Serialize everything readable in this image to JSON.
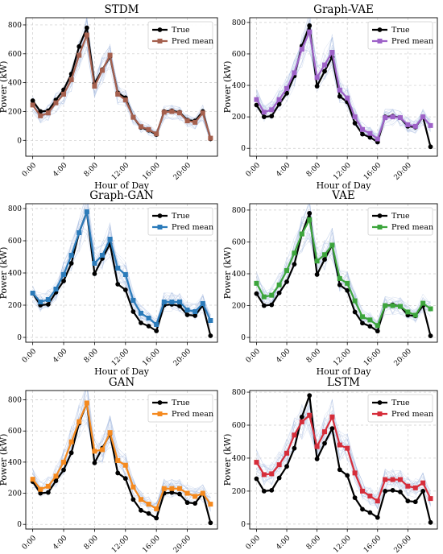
{
  "chart_data": [
    {
      "type": "line",
      "title": "STDM",
      "xlabel": "Hour of Day",
      "ylabel": "Power (kW)",
      "x": [
        0,
        1,
        2,
        3,
        4,
        5,
        6,
        7,
        8,
        9,
        10,
        11,
        12,
        13,
        14,
        15,
        16,
        17,
        18,
        19,
        20,
        21,
        22,
        23
      ],
      "xticks": [
        0,
        4,
        8,
        12,
        16,
        20
      ],
      "xticklabels": [
        "0:00",
        "4:00",
        "8:00",
        "12:00",
        "16:00",
        "20:00"
      ],
      "xlim": [
        -0.9,
        23.9
      ],
      "yticks": [
        0,
        200,
        400,
        600,
        800
      ],
      "ylim": [
        -110,
        850
      ],
      "grid": true,
      "legend": "top-right",
      "series": [
        {
          "name": "True",
          "color": "#000000",
          "marker": "circle",
          "values": [
            275,
            200,
            205,
            280,
            350,
            460,
            650,
            780,
            395,
            490,
            580,
            330,
            295,
            160,
            90,
            70,
            40,
            200,
            205,
            195,
            140,
            135,
            200,
            10
          ]
        },
        {
          "name": "Pred mean",
          "color": "#a5604e",
          "marker": "square",
          "values": [
            245,
            170,
            190,
            260,
            320,
            420,
            590,
            730,
            375,
            485,
            590,
            320,
            280,
            160,
            95,
            75,
            45,
            195,
            200,
            190,
            135,
            125,
            190,
            15
          ]
        }
      ]
    },
    {
      "type": "line",
      "title": "Graph-VAE",
      "xlabel": "Hour of Day",
      "ylabel": "Power (kW)",
      "x": [
        0,
        1,
        2,
        3,
        4,
        5,
        6,
        7,
        8,
        9,
        10,
        11,
        12,
        13,
        14,
        15,
        16,
        17,
        18,
        19,
        20,
        21,
        22,
        23
      ],
      "xticks": [
        0,
        4,
        8,
        12,
        16,
        20
      ],
      "xticklabels": [
        "0:00",
        "4:00",
        "8:00",
        "12:00",
        "16:00",
        "20:00"
      ],
      "xlim": [
        -0.9,
        23.9
      ],
      "yticks": [
        0,
        200,
        400,
        600,
        800
      ],
      "ylim": [
        -50,
        830
      ],
      "grid": true,
      "legend": "top-right",
      "series": [
        {
          "name": "True",
          "color": "#000000",
          "marker": "circle",
          "values": [
            275,
            200,
            205,
            280,
            350,
            460,
            650,
            780,
            395,
            490,
            580,
            330,
            295,
            160,
            90,
            70,
            40,
            200,
            205,
            195,
            140,
            135,
            200,
            10
          ]
        },
        {
          "name": "Pred mean",
          "color": "#9e62c8",
          "marker": "square",
          "values": [
            310,
            230,
            245,
            310,
            380,
            480,
            630,
            740,
            450,
            530,
            610,
            370,
            320,
            200,
            120,
            95,
            60,
            195,
            200,
            195,
            150,
            140,
            200,
            145
          ]
        }
      ]
    },
    {
      "type": "line",
      "title": "Graph-GAN",
      "xlabel": "Hour of Day",
      "ylabel": "Power (kW)",
      "x": [
        0,
        1,
        2,
        3,
        4,
        5,
        6,
        7,
        8,
        9,
        10,
        11,
        12,
        13,
        14,
        15,
        16,
        17,
        18,
        19,
        20,
        21,
        22,
        23
      ],
      "xticks": [
        0,
        4,
        8,
        12,
        16,
        20
      ],
      "xticklabels": [
        "0:00",
        "4:00",
        "8:00",
        "12:00",
        "16:00",
        "20:00"
      ],
      "xlim": [
        -0.9,
        23.9
      ],
      "yticks": [
        0,
        200,
        400,
        600,
        800
      ],
      "ylim": [
        -30,
        830
      ],
      "grid": true,
      "legend": "top-right",
      "series": [
        {
          "name": "True",
          "color": "#000000",
          "marker": "circle",
          "values": [
            275,
            200,
            205,
            280,
            350,
            460,
            650,
            780,
            395,
            490,
            580,
            330,
            295,
            160,
            90,
            70,
            40,
            200,
            205,
            195,
            140,
            135,
            200,
            10
          ]
        },
        {
          "name": "Pred mean",
          "color": "#2b7bba",
          "marker": "square",
          "values": [
            275,
            220,
            235,
            300,
            390,
            510,
            650,
            780,
            460,
            510,
            610,
            430,
            390,
            230,
            150,
            120,
            80,
            220,
            220,
            220,
            170,
            160,
            210,
            105
          ]
        }
      ]
    },
    {
      "type": "line",
      "title": "VAE",
      "xlabel": "Hour of Day",
      "ylabel": "Power (kW)",
      "x": [
        0,
        1,
        2,
        3,
        4,
        5,
        6,
        7,
        8,
        9,
        10,
        11,
        12,
        13,
        14,
        15,
        16,
        17,
        18,
        19,
        20,
        21,
        22,
        23
      ],
      "xticks": [
        0,
        4,
        8,
        12,
        16,
        20
      ],
      "xticklabels": [
        "0:00",
        "4:00",
        "8:00",
        "12:00",
        "16:00",
        "20:00"
      ],
      "xlim": [
        -0.9,
        23.9
      ],
      "yticks": [
        0,
        200,
        400,
        600,
        800
      ],
      "ylim": [
        -30,
        840
      ],
      "grid": true,
      "legend": "top-right",
      "series": [
        {
          "name": "True",
          "color": "#000000",
          "marker": "circle",
          "values": [
            275,
            200,
            205,
            280,
            350,
            460,
            650,
            780,
            395,
            490,
            580,
            330,
            295,
            160,
            90,
            70,
            40,
            200,
            205,
            195,
            140,
            135,
            200,
            10
          ]
        },
        {
          "name": "Pred mean",
          "color": "#3ca53c",
          "marker": "square",
          "values": [
            340,
            255,
            265,
            330,
            420,
            530,
            650,
            740,
            480,
            520,
            580,
            370,
            340,
            230,
            130,
            110,
            75,
            200,
            200,
            195,
            160,
            140,
            215,
            180
          ]
        }
      ]
    },
    {
      "type": "line",
      "title": "GAN",
      "xlabel": "Hour of Day",
      "ylabel": "Power (kW)",
      "x": [
        0,
        1,
        2,
        3,
        4,
        5,
        6,
        7,
        8,
        9,
        10,
        11,
        12,
        13,
        14,
        15,
        16,
        17,
        18,
        19,
        20,
        21,
        22,
        23
      ],
      "xticks": [
        0,
        4,
        8,
        12,
        16,
        20
      ],
      "xticklabels": [
        "0:00",
        "4:00",
        "8:00",
        "12:00",
        "16:00",
        "20:00"
      ],
      "xlim": [
        -0.9,
        23.9
      ],
      "yticks": [
        0,
        200,
        400,
        600,
        800
      ],
      "ylim": [
        -30,
        860
      ],
      "grid": true,
      "legend": "top-right",
      "series": [
        {
          "name": "True",
          "color": "#000000",
          "marker": "circle",
          "values": [
            275,
            200,
            205,
            280,
            350,
            460,
            650,
            780,
            395,
            490,
            580,
            330,
            295,
            160,
            90,
            70,
            40,
            200,
            205,
            195,
            140,
            135,
            200,
            10
          ]
        },
        {
          "name": "Pred mean",
          "color": "#f58a1f",
          "marker": "square",
          "values": [
            290,
            225,
            245,
            310,
            400,
            530,
            660,
            780,
            470,
            480,
            590,
            410,
            380,
            240,
            160,
            130,
            100,
            230,
            230,
            230,
            200,
            180,
            200,
            130
          ]
        }
      ]
    },
    {
      "type": "line",
      "title": "LSTM",
      "xlabel": "Hour of Day",
      "ylabel": "Power (kW)",
      "x": [
        0,
        1,
        2,
        3,
        4,
        5,
        6,
        7,
        8,
        9,
        10,
        11,
        12,
        13,
        14,
        15,
        16,
        17,
        18,
        19,
        20,
        21,
        22,
        23
      ],
      "xticks": [
        0,
        4,
        8,
        12,
        16,
        20
      ],
      "xticklabels": [
        "0:00",
        "4:00",
        "8:00",
        "12:00",
        "16:00",
        "20:00"
      ],
      "xlim": [
        -0.9,
        23.9
      ],
      "yticks": [
        0,
        200,
        400,
        600,
        800
      ],
      "ylim": [
        -30,
        810
      ],
      "grid": true,
      "legend": "top-right",
      "series": [
        {
          "name": "True",
          "color": "#000000",
          "marker": "circle",
          "values": [
            275,
            200,
            205,
            280,
            350,
            460,
            650,
            780,
            395,
            490,
            580,
            330,
            295,
            160,
            90,
            70,
            40,
            200,
            205,
            195,
            140,
            135,
            200,
            10
          ]
        },
        {
          "name": "Pred mean",
          "color": "#d62d3a",
          "marker": "square",
          "values": [
            375,
            300,
            305,
            360,
            430,
            540,
            620,
            660,
            470,
            560,
            650,
            480,
            460,
            310,
            200,
            170,
            140,
            270,
            270,
            270,
            230,
            220,
            250,
            155
          ]
        }
      ]
    }
  ]
}
